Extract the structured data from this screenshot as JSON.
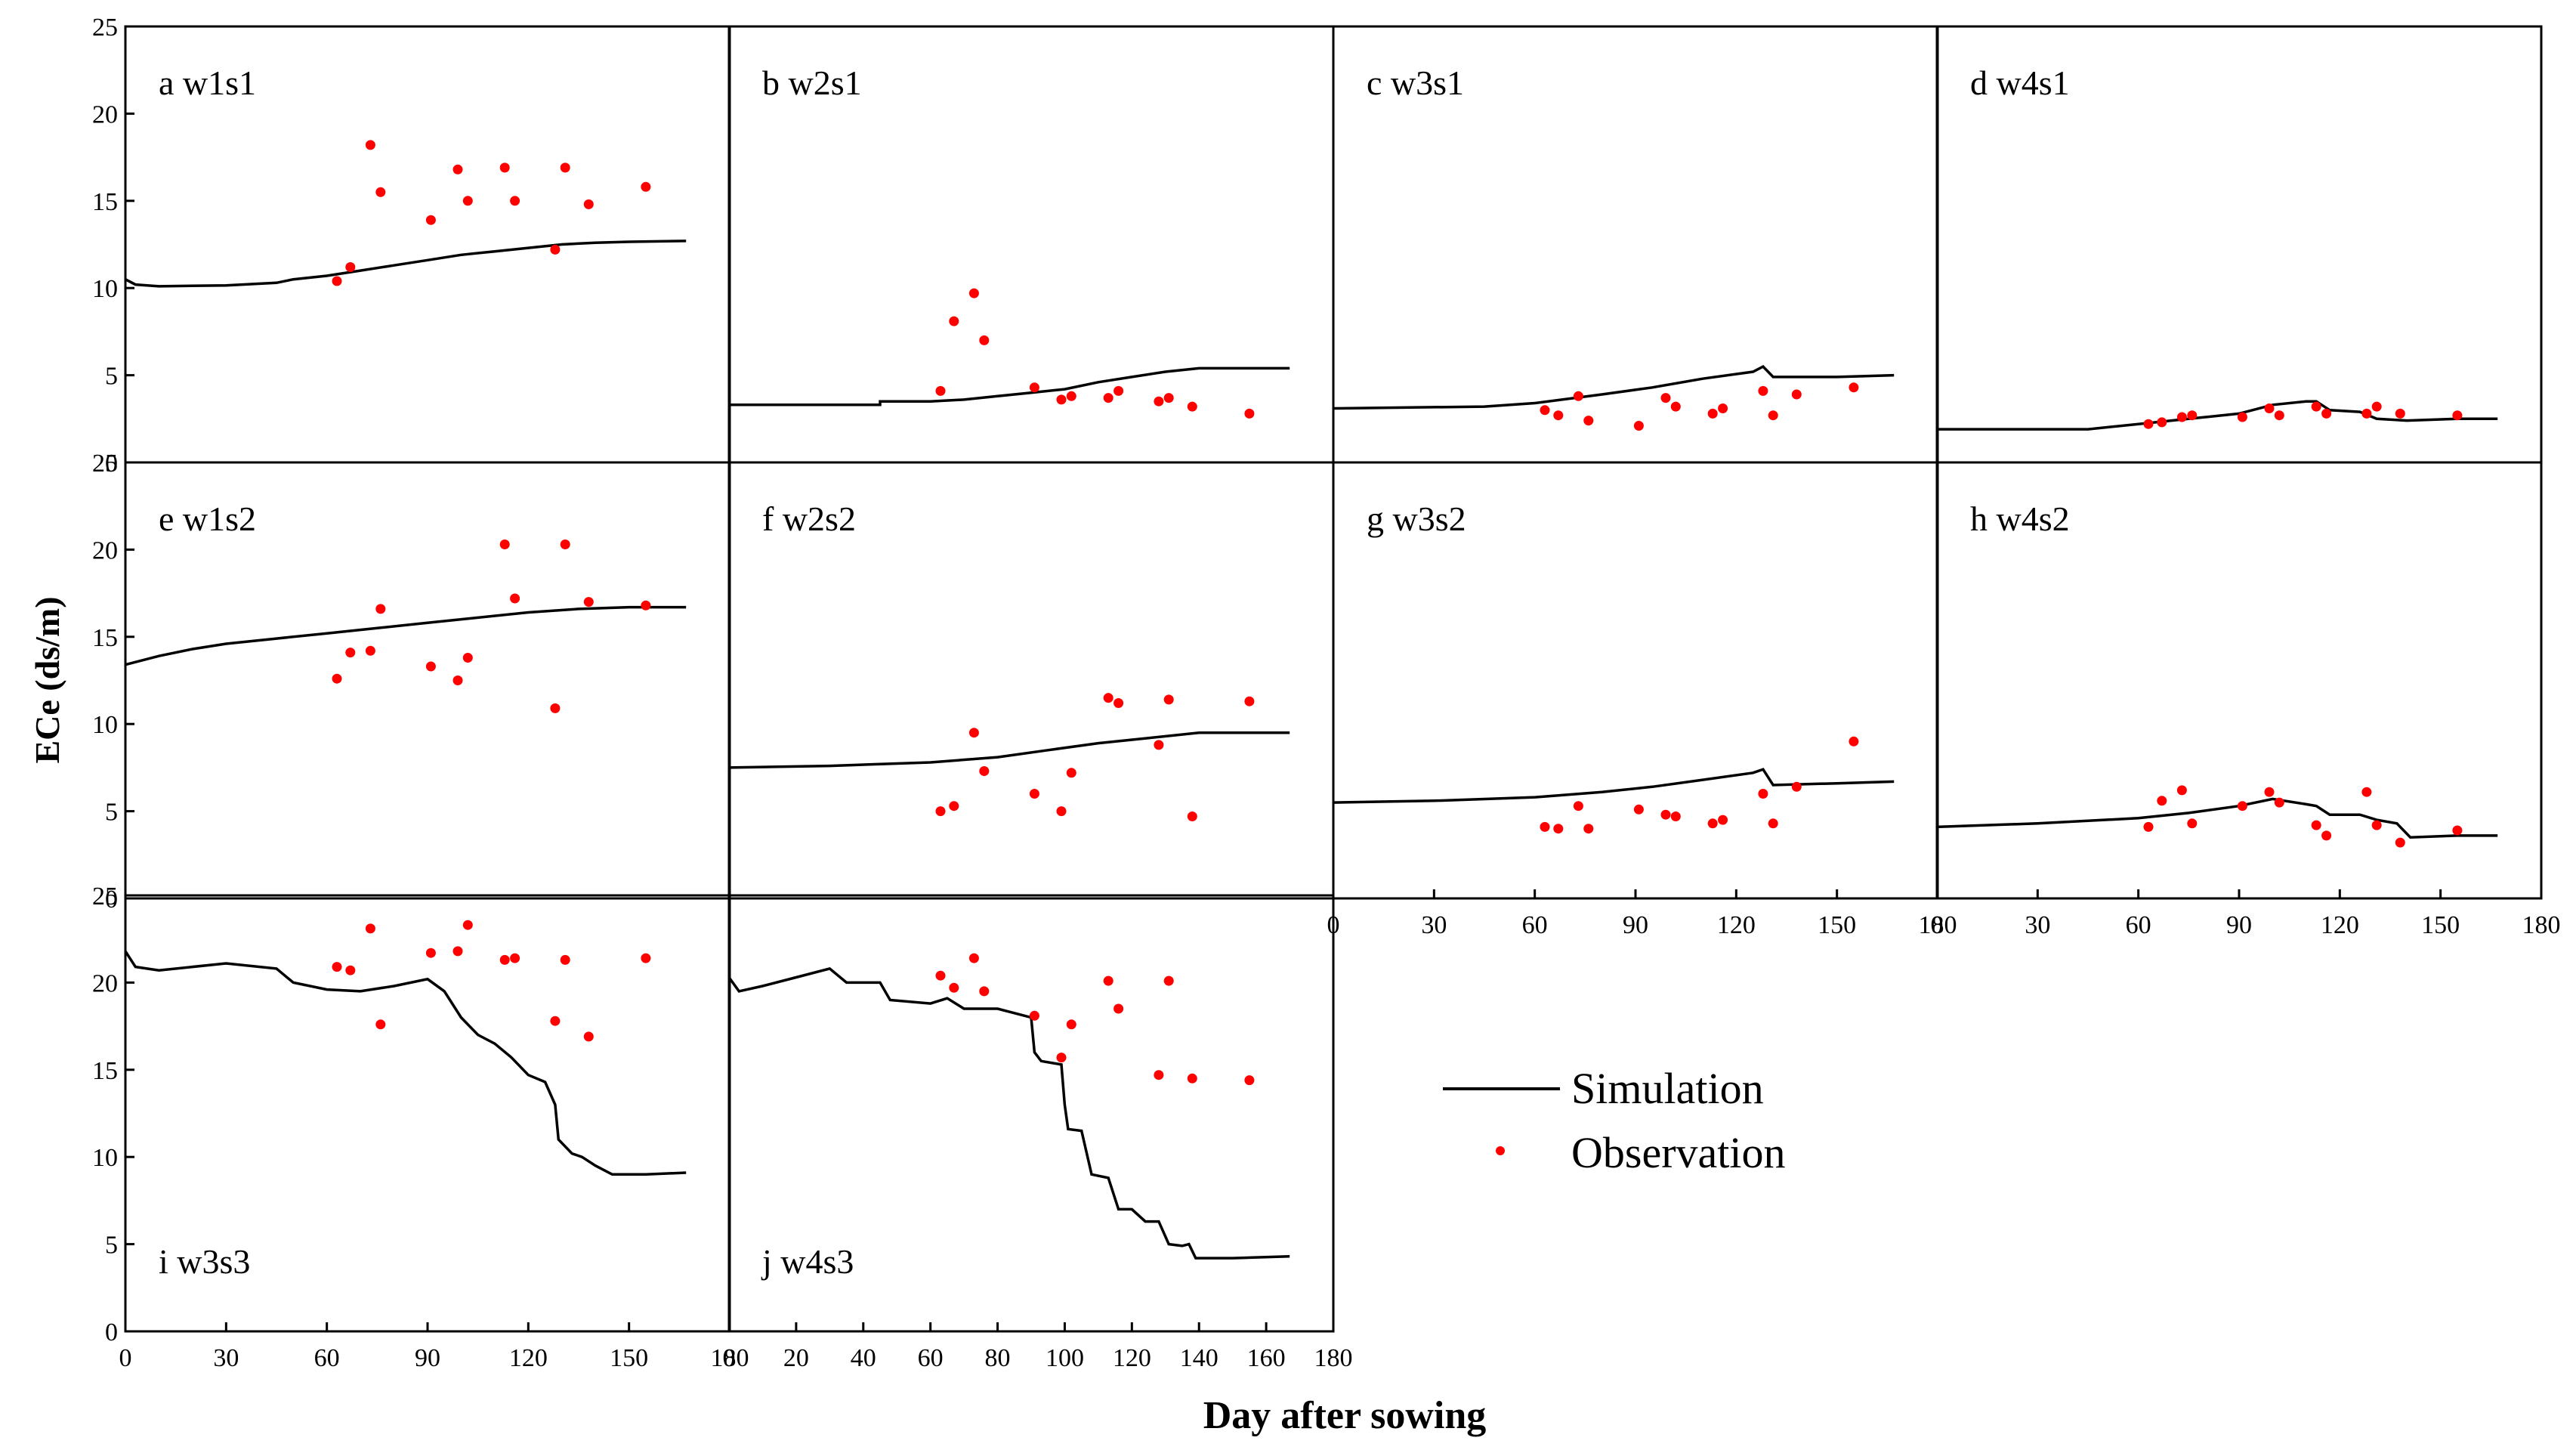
{
  "figure": {
    "ylabel": "ECe (ds/m)",
    "xlabel": "Day after sowing",
    "legend": {
      "simulation_label": "Simulation",
      "observation_label": "Observation"
    }
  },
  "colors": {
    "simulation_line": "#000000",
    "observation_marker": "#ff0000",
    "axis": "#000000"
  },
  "chart_data": [
    {
      "type": "scatter",
      "letter": "a",
      "title": "w1s1",
      "xlim": [
        0,
        180
      ],
      "ylim": [
        0,
        25
      ],
      "simulation": [
        [
          0,
          10.5
        ],
        [
          3,
          10.2
        ],
        [
          10,
          10.1
        ],
        [
          30,
          10.15
        ],
        [
          45,
          10.3
        ],
        [
          50,
          10.5
        ],
        [
          60,
          10.7
        ],
        [
          70,
          11.0
        ],
        [
          80,
          11.3
        ],
        [
          90,
          11.6
        ],
        [
          100,
          11.9
        ],
        [
          110,
          12.1
        ],
        [
          120,
          12.3
        ],
        [
          130,
          12.5
        ],
        [
          140,
          12.6
        ],
        [
          150,
          12.65
        ],
        [
          167,
          12.7
        ]
      ],
      "observation": [
        [
          63,
          10.4
        ],
        [
          67,
          11.2
        ],
        [
          73,
          18.2
        ],
        [
          76,
          15.5
        ],
        [
          91,
          13.9
        ],
        [
          99,
          16.8
        ],
        [
          102,
          15.0
        ],
        [
          113,
          16.9
        ],
        [
          116,
          15.0
        ],
        [
          128,
          12.2
        ],
        [
          131,
          16.9
        ],
        [
          138,
          14.8
        ],
        [
          155,
          15.8
        ]
      ]
    },
    {
      "type": "scatter",
      "letter": "b",
      "title": "w2s1",
      "xlim": [
        0,
        180
      ],
      "ylim": [
        0,
        25
      ],
      "simulation": [
        [
          0,
          3.3
        ],
        [
          45,
          3.3
        ],
        [
          45,
          3.5
        ],
        [
          60,
          3.5
        ],
        [
          70,
          3.6
        ],
        [
          80,
          3.8
        ],
        [
          90,
          4.0
        ],
        [
          100,
          4.2
        ],
        [
          110,
          4.6
        ],
        [
          120,
          4.9
        ],
        [
          130,
          5.2
        ],
        [
          140,
          5.4
        ],
        [
          167,
          5.4
        ]
      ],
      "observation": [
        [
          63,
          4.1
        ],
        [
          67,
          8.1
        ],
        [
          73,
          9.7
        ],
        [
          76,
          7.0
        ],
        [
          91,
          4.3
        ],
        [
          99,
          3.6
        ],
        [
          102,
          3.8
        ],
        [
          113,
          3.7
        ],
        [
          116,
          4.1
        ],
        [
          128,
          3.5
        ],
        [
          131,
          3.7
        ],
        [
          138,
          3.2
        ],
        [
          155,
          2.8
        ]
      ]
    },
    {
      "type": "scatter",
      "letter": "c",
      "title": "w3s1",
      "xlim": [
        0,
        180
      ],
      "ylim": [
        0,
        25
      ],
      "simulation": [
        [
          0,
          3.1
        ],
        [
          45,
          3.2
        ],
        [
          60,
          3.4
        ],
        [
          80,
          3.9
        ],
        [
          95,
          4.3
        ],
        [
          110,
          4.8
        ],
        [
          125,
          5.2
        ],
        [
          128,
          5.5
        ],
        [
          131,
          4.9
        ],
        [
          150,
          4.9
        ],
        [
          167,
          5.0
        ]
      ],
      "observation": [
        [
          63,
          3.0
        ],
        [
          67,
          2.7
        ],
        [
          73,
          3.8
        ],
        [
          76,
          2.4
        ],
        [
          91,
          2.1
        ],
        [
          99,
          3.7
        ],
        [
          102,
          3.2
        ],
        [
          113,
          2.8
        ],
        [
          116,
          3.1
        ],
        [
          128,
          4.1
        ],
        [
          131,
          2.7
        ],
        [
          138,
          3.9
        ],
        [
          155,
          4.3
        ]
      ]
    },
    {
      "type": "scatter",
      "letter": "d",
      "title": "w4s1",
      "xlim": [
        0,
        180
      ],
      "ylim": [
        0,
        25
      ],
      "simulation": [
        [
          0,
          1.9
        ],
        [
          45,
          1.9
        ],
        [
          60,
          2.2
        ],
        [
          75,
          2.5
        ],
        [
          90,
          2.8
        ],
        [
          100,
          3.3
        ],
        [
          110,
          3.5
        ],
        [
          113,
          3.5
        ],
        [
          117,
          3.0
        ],
        [
          126,
          2.9
        ],
        [
          131,
          2.5
        ],
        [
          140,
          2.4
        ],
        [
          155,
          2.5
        ],
        [
          167,
          2.5
        ]
      ],
      "observation": [
        [
          63,
          2.2
        ],
        [
          67,
          2.3
        ],
        [
          73,
          2.6
        ],
        [
          76,
          2.7
        ],
        [
          91,
          2.6
        ],
        [
          99,
          3.1
        ],
        [
          102,
          2.7
        ],
        [
          113,
          3.2
        ],
        [
          116,
          2.8
        ],
        [
          128,
          2.8
        ],
        [
          131,
          3.2
        ],
        [
          138,
          2.8
        ],
        [
          155,
          2.7
        ]
      ]
    },
    {
      "type": "scatter",
      "letter": "e",
      "title": "w1s2",
      "xlim": [
        0,
        180
      ],
      "ylim": [
        0,
        25
      ],
      "simulation": [
        [
          0,
          13.4
        ],
        [
          10,
          13.9
        ],
        [
          20,
          14.3
        ],
        [
          30,
          14.6
        ],
        [
          45,
          14.9
        ],
        [
          60,
          15.2
        ],
        [
          75,
          15.5
        ],
        [
          90,
          15.8
        ],
        [
          105,
          16.1
        ],
        [
          120,
          16.4
        ],
        [
          135,
          16.6
        ],
        [
          150,
          16.7
        ],
        [
          167,
          16.7
        ]
      ],
      "observation": [
        [
          63,
          12.6
        ],
        [
          67,
          14.1
        ],
        [
          73,
          14.2
        ],
        [
          76,
          16.6
        ],
        [
          91,
          13.3
        ],
        [
          99,
          12.5
        ],
        [
          102,
          13.8
        ],
        [
          113,
          20.3
        ],
        [
          116,
          17.2
        ],
        [
          128,
          10.9
        ],
        [
          131,
          20.3
        ],
        [
          138,
          17.0
        ],
        [
          155,
          16.8
        ]
      ]
    },
    {
      "type": "scatter",
      "letter": "f",
      "title": "w2s2",
      "xlim": [
        0,
        180
      ],
      "ylim": [
        0,
        25
      ],
      "simulation": [
        [
          0,
          7.5
        ],
        [
          30,
          7.6
        ],
        [
          60,
          7.8
        ],
        [
          80,
          8.1
        ],
        [
          95,
          8.5
        ],
        [
          110,
          8.9
        ],
        [
          125,
          9.2
        ],
        [
          140,
          9.5
        ],
        [
          167,
          9.5
        ]
      ],
      "observation": [
        [
          63,
          5.0
        ],
        [
          67,
          5.3
        ],
        [
          73,
          9.5
        ],
        [
          76,
          7.3
        ],
        [
          91,
          6.0
        ],
        [
          99,
          5.0
        ],
        [
          102,
          7.2
        ],
        [
          113,
          11.5
        ],
        [
          116,
          11.2
        ],
        [
          128,
          8.8
        ],
        [
          131,
          11.4
        ],
        [
          138,
          4.7
        ],
        [
          155,
          11.3
        ]
      ]
    },
    {
      "type": "scatter",
      "letter": "g",
      "title": "w3s2",
      "xlim": [
        0,
        180
      ],
      "ylim": [
        0,
        25
      ],
      "simulation": [
        [
          0,
          5.5
        ],
        [
          30,
          5.6
        ],
        [
          60,
          5.8
        ],
        [
          80,
          6.1
        ],
        [
          95,
          6.4
        ],
        [
          110,
          6.8
        ],
        [
          125,
          7.2
        ],
        [
          128,
          7.4
        ],
        [
          131,
          6.5
        ],
        [
          150,
          6.6
        ],
        [
          167,
          6.7
        ]
      ],
      "observation": [
        [
          63,
          4.1
        ],
        [
          67,
          4.0
        ],
        [
          73,
          5.3
        ],
        [
          76,
          4.0
        ],
        [
          91,
          5.1
        ],
        [
          99,
          4.8
        ],
        [
          102,
          4.7
        ],
        [
          113,
          4.3
        ],
        [
          116,
          4.5
        ],
        [
          128,
          6.0
        ],
        [
          131,
          4.3
        ],
        [
          138,
          6.4
        ],
        [
          155,
          9.0
        ]
      ]
    },
    {
      "type": "scatter",
      "letter": "h",
      "title": "w4s2",
      "xlim": [
        0,
        180
      ],
      "ylim": [
        0,
        25
      ],
      "simulation": [
        [
          0,
          4.1
        ],
        [
          30,
          4.3
        ],
        [
          60,
          4.6
        ],
        [
          75,
          4.9
        ],
        [
          90,
          5.3
        ],
        [
          100,
          5.7
        ],
        [
          110,
          5.4
        ],
        [
          113,
          5.3
        ],
        [
          117,
          4.8
        ],
        [
          126,
          4.8
        ],
        [
          131,
          4.5
        ],
        [
          137,
          4.3
        ],
        [
          141,
          3.5
        ],
        [
          155,
          3.6
        ],
        [
          167,
          3.6
        ]
      ],
      "observation": [
        [
          63,
          4.1
        ],
        [
          67,
          5.6
        ],
        [
          73,
          6.2
        ],
        [
          76,
          4.3
        ],
        [
          91,
          5.3
        ],
        [
          99,
          6.1
        ],
        [
          102,
          5.5
        ],
        [
          113,
          4.2
        ],
        [
          116,
          3.6
        ],
        [
          128,
          6.1
        ],
        [
          131,
          4.2
        ],
        [
          138,
          3.2
        ],
        [
          155,
          3.9
        ]
      ]
    },
    {
      "type": "scatter",
      "letter": "i",
      "title": "w3s3",
      "xlim": [
        0,
        180
      ],
      "ylim": [
        0,
        25
      ],
      "simulation": [
        [
          0,
          21.8
        ],
        [
          3,
          20.9
        ],
        [
          10,
          20.7
        ],
        [
          30,
          21.1
        ],
        [
          45,
          20.8
        ],
        [
          50,
          20.0
        ],
        [
          60,
          19.6
        ],
        [
          70,
          19.5
        ],
        [
          80,
          19.8
        ],
        [
          90,
          20.2
        ],
        [
          95,
          19.5
        ],
        [
          100,
          18.0
        ],
        [
          105,
          17.0
        ],
        [
          110,
          16.5
        ],
        [
          115,
          15.7
        ],
        [
          120,
          14.7
        ],
        [
          125,
          14.3
        ],
        [
          128,
          13.0
        ],
        [
          129,
          11.0
        ],
        [
          133,
          10.2
        ],
        [
          136,
          10.0
        ],
        [
          140,
          9.5
        ],
        [
          145,
          9.0
        ],
        [
          155,
          9.0
        ],
        [
          167,
          9.1
        ]
      ],
      "observation": [
        [
          63,
          20.9
        ],
        [
          67,
          20.7
        ],
        [
          73,
          23.1
        ],
        [
          76,
          17.6
        ],
        [
          91,
          21.7
        ],
        [
          99,
          21.8
        ],
        [
          102,
          23.3
        ],
        [
          113,
          21.3
        ],
        [
          116,
          21.4
        ],
        [
          128,
          17.8
        ],
        [
          131,
          21.3
        ],
        [
          138,
          16.9
        ],
        [
          155,
          21.4
        ]
      ]
    },
    {
      "type": "scatter",
      "letter": "j",
      "title": "w4s3",
      "xlim": [
        0,
        180
      ],
      "ylim": [
        0,
        25
      ],
      "simulation": [
        [
          0,
          20.3
        ],
        [
          3,
          19.5
        ],
        [
          10,
          19.8
        ],
        [
          20,
          20.3
        ],
        [
          30,
          20.8
        ],
        [
          35,
          20.0
        ],
        [
          45,
          20.0
        ],
        [
          48,
          19.0
        ],
        [
          60,
          18.8
        ],
        [
          65,
          19.1
        ],
        [
          70,
          18.5
        ],
        [
          80,
          18.5
        ],
        [
          90,
          18.0
        ],
        [
          91,
          16.0
        ],
        [
          93,
          15.5
        ],
        [
          99,
          15.3
        ],
        [
          100,
          13.0
        ],
        [
          101,
          11.6
        ],
        [
          105,
          11.5
        ],
        [
          108,
          9.0
        ],
        [
          113,
          8.8
        ],
        [
          116,
          7.0
        ],
        [
          120,
          7.0
        ],
        [
          124,
          6.3
        ],
        [
          128,
          6.3
        ],
        [
          131,
          5.0
        ],
        [
          135,
          4.9
        ],
        [
          137,
          5.0
        ],
        [
          139,
          4.2
        ],
        [
          150,
          4.2
        ],
        [
          167,
          4.3
        ]
      ],
      "observation": [
        [
          63,
          20.4
        ],
        [
          67,
          19.7
        ],
        [
          73,
          21.4
        ],
        [
          76,
          19.5
        ],
        [
          91,
          18.1
        ],
        [
          99,
          15.7
        ],
        [
          102,
          17.6
        ],
        [
          113,
          20.1
        ],
        [
          116,
          18.5
        ],
        [
          128,
          14.7
        ],
        [
          131,
          20.1
        ],
        [
          138,
          14.5
        ],
        [
          155,
          14.4
        ]
      ]
    }
  ]
}
